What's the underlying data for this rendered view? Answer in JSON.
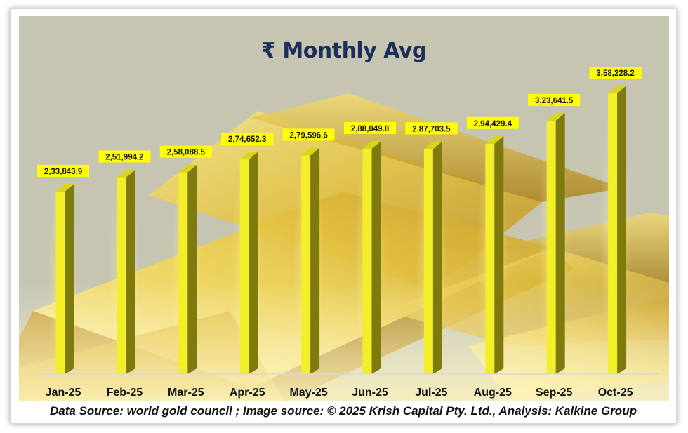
{
  "chart_data": {
    "type": "bar",
    "title": "₹ Monthly Avg",
    "categories": [
      "Jan-25",
      "Feb-25",
      "Mar-25",
      "Apr-25",
      "May-25",
      "Jun-25",
      "Jul-25",
      "Aug-25",
      "Sep-25",
      "Oct-25"
    ],
    "values": [
      233843.9,
      251994.2,
      258088.5,
      274652.3,
      279596.6,
      288049.8,
      287703.5,
      294429.4,
      323641.5,
      358228.2
    ],
    "data_labels": [
      "2,33,843.9",
      "2,51,994.2",
      "2,58,088.5",
      "2,74,652.3",
      "2,79,596.6",
      "2,88,049.8",
      "2,87,703.5",
      "2,94,429.4",
      "3,23,641.5",
      "3,58,228.2"
    ],
    "ylim": [
      0,
      360000
    ],
    "grid": false,
    "legend": "none",
    "colors": {
      "bar_front": "#f2ee2a",
      "bar_side": "#7f7a0e",
      "label_bg": "#ffff00",
      "title": "#1c2f5c",
      "plot_bg": "#c5c5b2"
    }
  },
  "footer": {
    "source_text": "Data Source: world gold council ; Image source: © 2025 Krish Capital Pty. Ltd., Analysis: Kalkine Group"
  },
  "background": {
    "image": "gold-bars-photo"
  }
}
